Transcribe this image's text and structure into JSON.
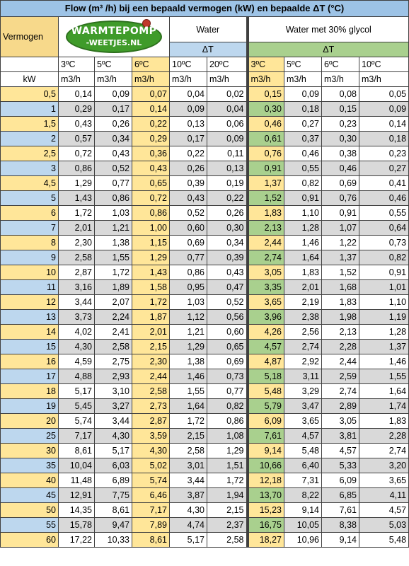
{
  "title": "Flow (m³ /h) bij een bepaald vermogen (kW) en bepaalde ΔT (°C)",
  "header": {
    "vermogen": "Vermogen",
    "logo_line1": "WARMTEPOMP",
    "logo_line2": "-WEETJES.NL",
    "water": "Water",
    "glycol": "Water met 30% glycol",
    "delta_t": "ΔT",
    "kw_unit": "kW",
    "flow_unit": "m3/h",
    "water_temps": [
      "3ºC",
      "5ºC",
      "6ºC",
      "10ºC",
      "20ºC"
    ],
    "glycol_temps": [
      "3ºC",
      "5ºC",
      "6ºC",
      "10ºC"
    ]
  },
  "rows": [
    {
      "kw": "0,5",
      "water": [
        "0,14",
        "0,09",
        "0,07",
        "0,04",
        "0,02"
      ],
      "glycol": [
        "0,15",
        "0,09",
        "0,08",
        "0,05"
      ]
    },
    {
      "kw": "1",
      "water": [
        "0,29",
        "0,17",
        "0,14",
        "0,09",
        "0,04"
      ],
      "glycol": [
        "0,30",
        "0,18",
        "0,15",
        "0,09"
      ]
    },
    {
      "kw": "1,5",
      "water": [
        "0,43",
        "0,26",
        "0,22",
        "0,13",
        "0,06"
      ],
      "glycol": [
        "0,46",
        "0,27",
        "0,23",
        "0,14"
      ]
    },
    {
      "kw": "2",
      "water": [
        "0,57",
        "0,34",
        "0,29",
        "0,17",
        "0,09"
      ],
      "glycol": [
        "0,61",
        "0,37",
        "0,30",
        "0,18"
      ]
    },
    {
      "kw": "2,5",
      "water": [
        "0,72",
        "0,43",
        "0,36",
        "0,22",
        "0,11"
      ],
      "glycol": [
        "0,76",
        "0,46",
        "0,38",
        "0,23"
      ]
    },
    {
      "kw": "3",
      "water": [
        "0,86",
        "0,52",
        "0,43",
        "0,26",
        "0,13"
      ],
      "glycol": [
        "0,91",
        "0,55",
        "0,46",
        "0,27"
      ]
    },
    {
      "kw": "4,5",
      "water": [
        "1,29",
        "0,77",
        "0,65",
        "0,39",
        "0,19"
      ],
      "glycol": [
        "1,37",
        "0,82",
        "0,69",
        "0,41"
      ]
    },
    {
      "kw": "5",
      "water": [
        "1,43",
        "0,86",
        "0,72",
        "0,43",
        "0,22"
      ],
      "glycol": [
        "1,52",
        "0,91",
        "0,76",
        "0,46"
      ]
    },
    {
      "kw": "6",
      "water": [
        "1,72",
        "1,03",
        "0,86",
        "0,52",
        "0,26"
      ],
      "glycol": [
        "1,83",
        "1,10",
        "0,91",
        "0,55"
      ]
    },
    {
      "kw": "7",
      "water": [
        "2,01",
        "1,21",
        "1,00",
        "0,60",
        "0,30"
      ],
      "glycol": [
        "2,13",
        "1,28",
        "1,07",
        "0,64"
      ]
    },
    {
      "kw": "8",
      "water": [
        "2,30",
        "1,38",
        "1,15",
        "0,69",
        "0,34"
      ],
      "glycol": [
        "2,44",
        "1,46",
        "1,22",
        "0,73"
      ]
    },
    {
      "kw": "9",
      "water": [
        "2,58",
        "1,55",
        "1,29",
        "0,77",
        "0,39"
      ],
      "glycol": [
        "2,74",
        "1,64",
        "1,37",
        "0,82"
      ]
    },
    {
      "kw": "10",
      "water": [
        "2,87",
        "1,72",
        "1,43",
        "0,86",
        "0,43"
      ],
      "glycol": [
        "3,05",
        "1,83",
        "1,52",
        "0,91"
      ]
    },
    {
      "kw": "11",
      "water": [
        "3,16",
        "1,89",
        "1,58",
        "0,95",
        "0,47"
      ],
      "glycol": [
        "3,35",
        "2,01",
        "1,68",
        "1,01"
      ]
    },
    {
      "kw": "12",
      "water": [
        "3,44",
        "2,07",
        "1,72",
        "1,03",
        "0,52"
      ],
      "glycol": [
        "3,65",
        "2,19",
        "1,83",
        "1,10"
      ]
    },
    {
      "kw": "13",
      "water": [
        "3,73",
        "2,24",
        "1,87",
        "1,12",
        "0,56"
      ],
      "glycol": [
        "3,96",
        "2,38",
        "1,98",
        "1,19"
      ]
    },
    {
      "kw": "14",
      "water": [
        "4,02",
        "2,41",
        "2,01",
        "1,21",
        "0,60"
      ],
      "glycol": [
        "4,26",
        "2,56",
        "2,13",
        "1,28"
      ]
    },
    {
      "kw": "15",
      "water": [
        "4,30",
        "2,58",
        "2,15",
        "1,29",
        "0,65"
      ],
      "glycol": [
        "4,57",
        "2,74",
        "2,28",
        "1,37"
      ]
    },
    {
      "kw": "16",
      "water": [
        "4,59",
        "2,75",
        "2,30",
        "1,38",
        "0,69"
      ],
      "glycol": [
        "4,87",
        "2,92",
        "2,44",
        "1,46"
      ]
    },
    {
      "kw": "17",
      "water": [
        "4,88",
        "2,93",
        "2,44",
        "1,46",
        "0,73"
      ],
      "glycol": [
        "5,18",
        "3,11",
        "2,59",
        "1,55"
      ]
    },
    {
      "kw": "18",
      "water": [
        "5,17",
        "3,10",
        "2,58",
        "1,55",
        "0,77"
      ],
      "glycol": [
        "5,48",
        "3,29",
        "2,74",
        "1,64"
      ]
    },
    {
      "kw": "19",
      "water": [
        "5,45",
        "3,27",
        "2,73",
        "1,64",
        "0,82"
      ],
      "glycol": [
        "5,79",
        "3,47",
        "2,89",
        "1,74"
      ]
    },
    {
      "kw": "20",
      "water": [
        "5,74",
        "3,44",
        "2,87",
        "1,72",
        "0,86"
      ],
      "glycol": [
        "6,09",
        "3,65",
        "3,05",
        "1,83"
      ]
    },
    {
      "kw": "25",
      "water": [
        "7,17",
        "4,30",
        "3,59",
        "2,15",
        "1,08"
      ],
      "glycol": [
        "7,61",
        "4,57",
        "3,81",
        "2,28"
      ]
    },
    {
      "kw": "30",
      "water": [
        "8,61",
        "5,17",
        "4,30",
        "2,58",
        "1,29"
      ],
      "glycol": [
        "9,14",
        "5,48",
        "4,57",
        "2,74"
      ]
    },
    {
      "kw": "35",
      "water": [
        "10,04",
        "6,03",
        "5,02",
        "3,01",
        "1,51"
      ],
      "glycol": [
        "10,66",
        "6,40",
        "5,33",
        "3,20"
      ]
    },
    {
      "kw": "40",
      "water": [
        "11,48",
        "6,89",
        "5,74",
        "3,44",
        "1,72"
      ],
      "glycol": [
        "12,18",
        "7,31",
        "6,09",
        "3,65"
      ]
    },
    {
      "kw": "45",
      "water": [
        "12,91",
        "7,75",
        "6,46",
        "3,87",
        "1,94"
      ],
      "glycol": [
        "13,70",
        "8,22",
        "6,85",
        "4,11"
      ]
    },
    {
      "kw": "50",
      "water": [
        "14,35",
        "8,61",
        "7,17",
        "4,30",
        "2,15"
      ],
      "glycol": [
        "15,23",
        "9,14",
        "7,61",
        "4,57"
      ]
    },
    {
      "kw": "55",
      "water": [
        "15,78",
        "9,47",
        "7,89",
        "4,74",
        "2,37"
      ],
      "glycol": [
        "16,75",
        "10,05",
        "8,38",
        "5,03"
      ]
    },
    {
      "kw": "60",
      "water": [
        "17,22",
        "10,33",
        "8,61",
        "5,17",
        "2,58"
      ],
      "glycol": [
        "18,27",
        "10,96",
        "9,14",
        "5,48"
      ]
    }
  ]
}
